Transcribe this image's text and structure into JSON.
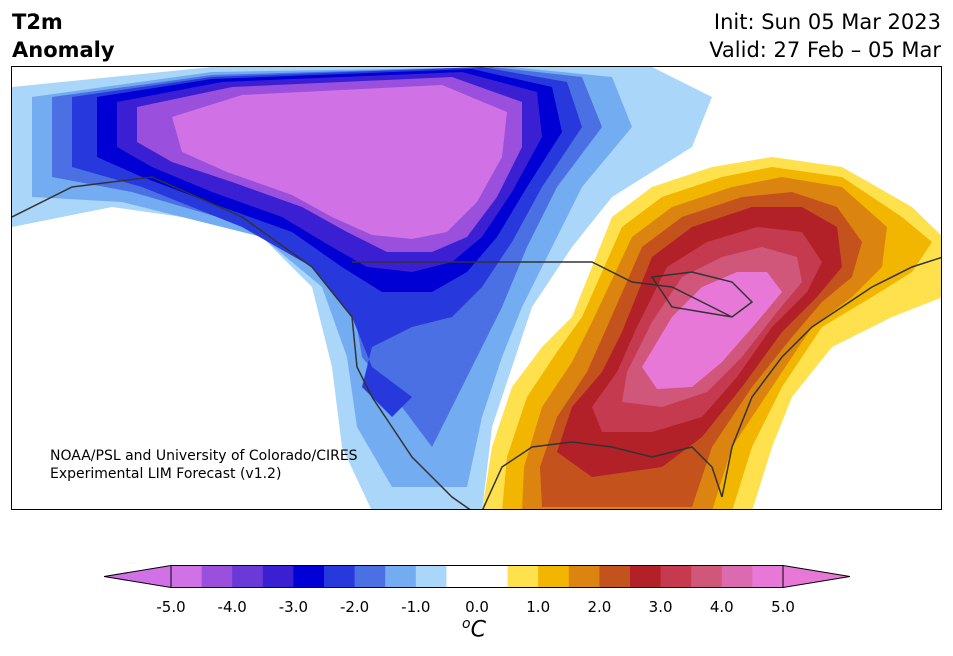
{
  "header": {
    "title_line1": "T2m",
    "title_line2": "Anomaly",
    "init": "Init: Sun 05 Mar 2023",
    "valid": "Valid: 27 Feb – 05 Mar"
  },
  "credit": {
    "line1": "NOAA/PSL and University of Colorado/CIRES",
    "line2": "Experimental LIM Forecast (v1.2)"
  },
  "colorbar": {
    "unit_base": "C",
    "unit_sup": "o",
    "ticks": [
      "-5.0",
      "-4.0",
      "-3.0",
      "-2.0",
      "-1.0",
      "0.0",
      "1.0",
      "2.0",
      "3.0",
      "4.0",
      "5.0"
    ],
    "colors": [
      "#d072e6",
      "#9a4fdd",
      "#6a39d8",
      "#3b1fd2",
      "#0000d4",
      "#2738dc",
      "#4a70e4",
      "#74acf1",
      "#a9d6f9",
      "#ffffff",
      "#ffffff",
      "#ffe14d",
      "#f2b600",
      "#dc8410",
      "#c4521d",
      "#b22028",
      "#c63a50",
      "#d0567a",
      "#dc6ab0",
      "#e878d8"
    ],
    "min_color": "#d072e6",
    "max_color": "#e878d8"
  },
  "map": {
    "colors": {
      "cold_extreme": "#d072e6",
      "cold_very": "#9a4fdd",
      "cold_strong": "#3b1fd2",
      "cold_mid": "#0000d4",
      "cold_moderate": "#2738dc",
      "cold_light": "#4a70e4",
      "cold_weak": "#74acf1",
      "cold_faint": "#a9d6f9",
      "neutral": "#ffffff",
      "warm_faint": "#ffe14d",
      "warm_weak": "#f2b600",
      "warm_light": "#dc8410",
      "warm_moderate": "#c4521d",
      "warm_mid": "#b22028",
      "warm_strong": "#c63a50",
      "warm_very": "#d0567a",
      "warm_extreme": "#e878d8",
      "border": "#333333"
    }
  }
}
